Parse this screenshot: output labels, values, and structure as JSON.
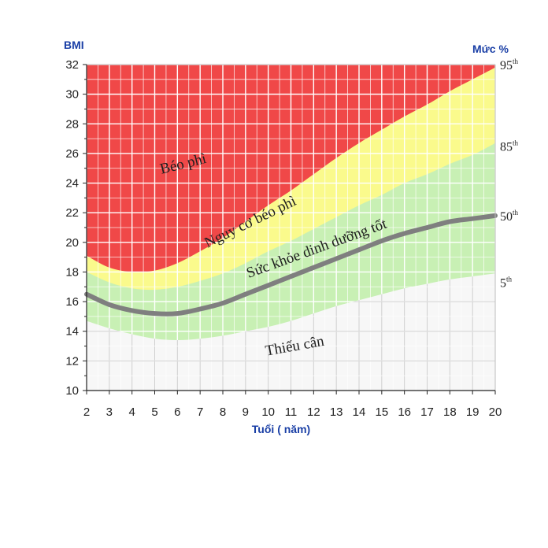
{
  "chart_data": {
    "type": "area",
    "ylabel": "BMI",
    "xlabel": "Tuổi ( năm)",
    "right_axis_label": "Mức %",
    "x": [
      2,
      3,
      4,
      5,
      6,
      7,
      8,
      9,
      10,
      11,
      12,
      13,
      14,
      15,
      16,
      17,
      18,
      19,
      20
    ],
    "xlim": [
      2,
      20
    ],
    "ylim": [
      10,
      32
    ],
    "y_ticks": [
      10,
      12,
      14,
      16,
      18,
      20,
      22,
      24,
      26,
      28,
      30,
      32
    ],
    "grid": true,
    "series": [
      {
        "percentile": "5",
        "values": [
          14.7,
          14.2,
          13.8,
          13.5,
          13.4,
          13.5,
          13.7,
          14.0,
          14.3,
          14.7,
          15.2,
          15.7,
          16.1,
          16.5,
          16.9,
          17.2,
          17.5,
          17.7,
          17.9
        ]
      },
      {
        "percentile": "50",
        "values": [
          16.5,
          15.8,
          15.4,
          15.2,
          15.2,
          15.5,
          15.9,
          16.5,
          17.1,
          17.7,
          18.3,
          18.9,
          19.5,
          20.1,
          20.6,
          21.0,
          21.4,
          21.6,
          21.8
        ]
      },
      {
        "percentile": "85",
        "values": [
          18.0,
          17.3,
          16.9,
          16.8,
          17.0,
          17.4,
          17.9,
          18.6,
          19.4,
          20.1,
          20.9,
          21.7,
          22.5,
          23.2,
          24.0,
          24.6,
          25.3,
          25.9,
          26.7
        ]
      },
      {
        "percentile": "95",
        "values": [
          19.1,
          18.3,
          18.0,
          18.1,
          18.6,
          19.4,
          20.3,
          21.4,
          22.5,
          23.5,
          24.6,
          25.7,
          26.7,
          27.6,
          28.5,
          29.3,
          30.2,
          31.0,
          31.8
        ]
      }
    ],
    "right_labels": [
      {
        "text": "95",
        "sup": "th",
        "y": 32
      },
      {
        "text": "85",
        "sup": "th",
        "y": 26.5
      },
      {
        "text": "50",
        "sup": "th",
        "y": 21.8
      },
      {
        "text": "5",
        "sup": "th",
        "y": 17.3
      }
    ],
    "zone_labels": [
      {
        "name": "zone-obese-label",
        "text": "Béo phì",
        "x": 6.3,
        "y": 25.0,
        "angle": -14
      },
      {
        "name": "zone-overweight-label",
        "text": "Nguy cơ béo phì",
        "x": 9.3,
        "y": 21.1,
        "angle": -26
      },
      {
        "name": "zone-healthy-label",
        "text": "Sức khỏe dinh dưỡng tốt",
        "x": 12.2,
        "y": 19.3,
        "angle": -20
      },
      {
        "name": "zone-underweight-label",
        "text": "Thiếu cân",
        "x": 11.2,
        "y": 12.7,
        "angle": -10
      }
    ],
    "colors": {
      "obese": "#f04848",
      "overweight": "#fafa8c",
      "healthy": "#c8f0b4",
      "underweight": "#f7f7f7",
      "median_line": "#7f7f7f",
      "grid": "#ffffff",
      "grid_lower": "#cfcfcf",
      "axis_title": "#1a3fa6"
    }
  }
}
